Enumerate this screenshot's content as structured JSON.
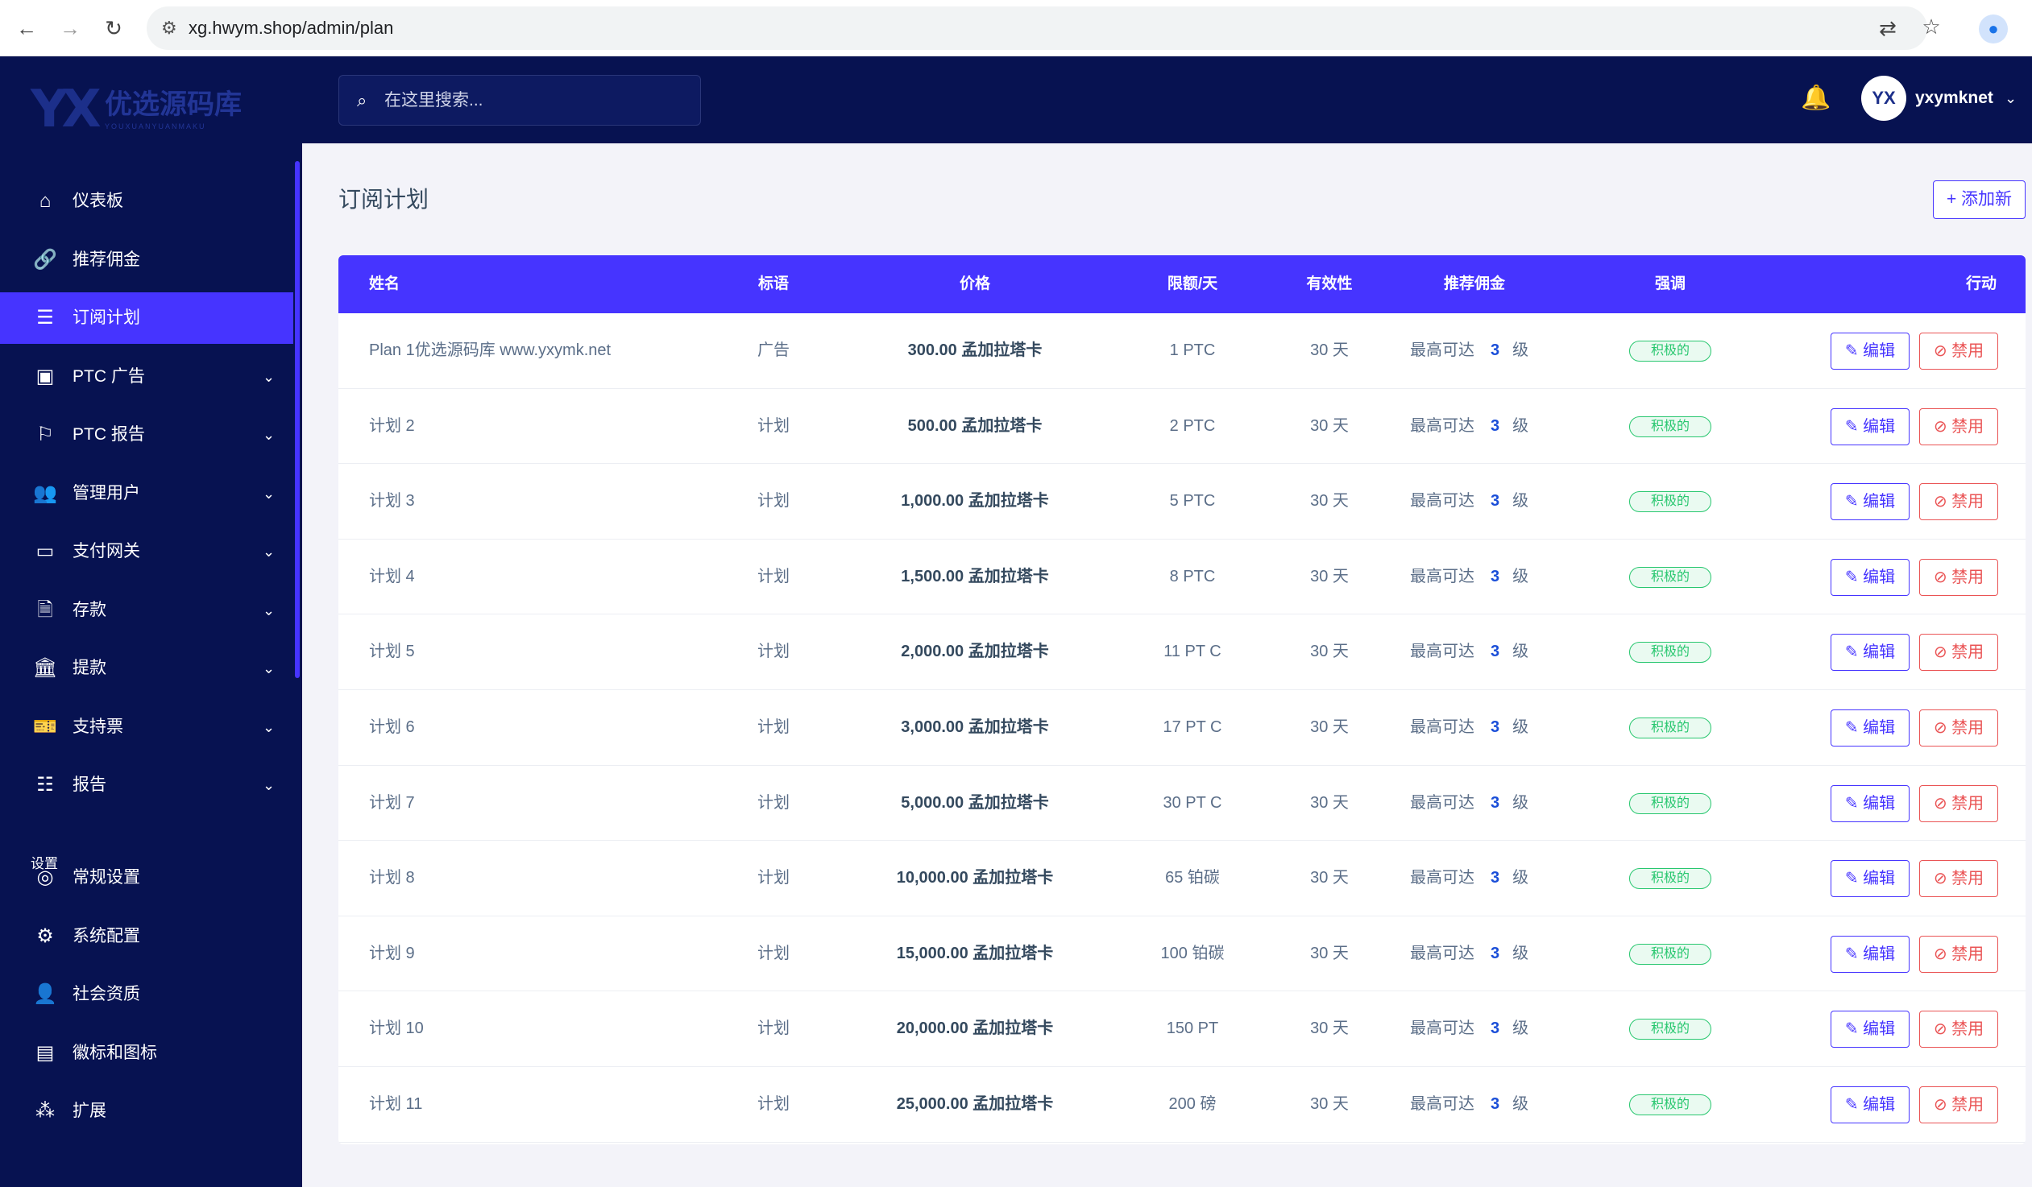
{
  "browser": {
    "url": "xg.hwym.shop/admin/plan"
  },
  "brand": {
    "mark": "YX",
    "name": "优选源码库",
    "sub": "YOUXUANYUANMAKU"
  },
  "sidebar": {
    "items": [
      {
        "label": "仪表板",
        "icon": "home-icon",
        "glyph": "⌂",
        "expandable": false,
        "active": false
      },
      {
        "label": "推荐佣金",
        "icon": "link-icon",
        "glyph": "🔗",
        "expandable": false,
        "active": false
      },
      {
        "label": "订阅计划",
        "icon": "list-icon",
        "glyph": "☰",
        "expandable": false,
        "active": true
      },
      {
        "label": "PTC 广告",
        "icon": "ad-icon",
        "glyph": "▣",
        "expandable": true,
        "active": false
      },
      {
        "label": "PTC 报告",
        "icon": "flag-icon",
        "glyph": "⚐",
        "expandable": true,
        "active": false
      },
      {
        "label": "管理用户",
        "icon": "users-icon",
        "glyph": "👥",
        "expandable": true,
        "active": false
      },
      {
        "label": "支付网关",
        "icon": "credit-card-icon",
        "glyph": "▭",
        "expandable": true,
        "active": false
      },
      {
        "label": "存款",
        "icon": "deposit-icon",
        "glyph": "🗎",
        "expandable": true,
        "active": false
      },
      {
        "label": "提款",
        "icon": "bank-icon",
        "glyph": "🏛",
        "expandable": true,
        "active": false
      },
      {
        "label": "支持票",
        "icon": "ticket-icon",
        "glyph": "🎫",
        "expandable": true,
        "active": false
      },
      {
        "label": "报告",
        "icon": "report-list-icon",
        "glyph": "☷",
        "expandable": true,
        "active": false
      }
    ],
    "section_settings": "设置",
    "settings_items": [
      {
        "label": "常规设置",
        "icon": "life-ring-icon",
        "glyph": "◎"
      },
      {
        "label": "系统配置",
        "icon": "gear-icon",
        "glyph": "⚙"
      },
      {
        "label": "社会资质",
        "icon": "user-group-icon",
        "glyph": "👤"
      },
      {
        "label": "徽标和图标",
        "icon": "image-icon",
        "glyph": "▤"
      },
      {
        "label": "扩展",
        "icon": "puzzle-icon",
        "glyph": "⁂"
      }
    ]
  },
  "topbar": {
    "search_placeholder": "在这里搜索...",
    "username": "yxymknet",
    "avatar_text": "YX"
  },
  "page": {
    "title": "订阅计划",
    "add_button": "+ 添加新"
  },
  "table": {
    "headers": {
      "name": "姓名",
      "tag": "标语",
      "price": "价格",
      "limit": "限额/天",
      "validity": "有效性",
      "referral": "推荐佣金",
      "emphasis": "强调",
      "action": "行动"
    },
    "rows": [
      {
        "name": "Plan 1优选源码库 www.yxymk.net",
        "tag": "广告",
        "price": "300.00 孟加拉塔卡",
        "limit": "1 PTC",
        "validity": "30 天",
        "ref_prefix": "最高可达",
        "ref_level": "3",
        "ref_suffix": "级",
        "status": "积极的",
        "edit": "编辑",
        "disable": "禁用"
      },
      {
        "name": "计划 2",
        "tag": "计划",
        "price": "500.00 孟加拉塔卡",
        "limit": "2 PTC",
        "validity": "30 天",
        "ref_prefix": "最高可达",
        "ref_level": "3",
        "ref_suffix": "级",
        "status": "积极的",
        "edit": "编辑",
        "disable": "禁用"
      },
      {
        "name": "计划 3",
        "tag": "计划",
        "price": "1,000.00 孟加拉塔卡",
        "limit": "5 PTC",
        "validity": "30 天",
        "ref_prefix": "最高可达",
        "ref_level": "3",
        "ref_suffix": "级",
        "status": "积极的",
        "edit": "编辑",
        "disable": "禁用"
      },
      {
        "name": "计划 4",
        "tag": "计划",
        "price": "1,500.00 孟加拉塔卡",
        "limit": "8 PTC",
        "validity": "30 天",
        "ref_prefix": "最高可达",
        "ref_level": "3",
        "ref_suffix": "级",
        "status": "积极的",
        "edit": "编辑",
        "disable": "禁用"
      },
      {
        "name": "计划 5",
        "tag": "计划",
        "price": "2,000.00 孟加拉塔卡",
        "limit": "11 PT C",
        "validity": "30 天",
        "ref_prefix": "最高可达",
        "ref_level": "3",
        "ref_suffix": "级",
        "status": "积极的",
        "edit": "编辑",
        "disable": "禁用"
      },
      {
        "name": "计划 6",
        "tag": "计划",
        "price": "3,000.00 孟加拉塔卡",
        "limit": "17 PT C",
        "validity": "30 天",
        "ref_prefix": "最高可达",
        "ref_level": "3",
        "ref_suffix": "级",
        "status": "积极的",
        "edit": "编辑",
        "disable": "禁用"
      },
      {
        "name": "计划 7",
        "tag": "计划",
        "price": "5,000.00 孟加拉塔卡",
        "limit": "30 PT C",
        "validity": "30 天",
        "ref_prefix": "最高可达",
        "ref_level": "3",
        "ref_suffix": "级",
        "status": "积极的",
        "edit": "编辑",
        "disable": "禁用"
      },
      {
        "name": "计划 8",
        "tag": "计划",
        "price": "10,000.00 孟加拉塔卡",
        "limit": "65 铂碳",
        "validity": "30 天",
        "ref_prefix": "最高可达",
        "ref_level": "3",
        "ref_suffix": "级",
        "status": "积极的",
        "edit": "编辑",
        "disable": "禁用"
      },
      {
        "name": "计划 9",
        "tag": "计划",
        "price": "15,000.00 孟加拉塔卡",
        "limit": "100 铂碳",
        "validity": "30 天",
        "ref_prefix": "最高可达",
        "ref_level": "3",
        "ref_suffix": "级",
        "status": "积极的",
        "edit": "编辑",
        "disable": "禁用"
      },
      {
        "name": "计划 10",
        "tag": "计划",
        "price": "20,000.00 孟加拉塔卡",
        "limit": "150 PT",
        "validity": "30 天",
        "ref_prefix": "最高可达",
        "ref_level": "3",
        "ref_suffix": "级",
        "status": "积极的",
        "edit": "编辑",
        "disable": "禁用"
      },
      {
        "name": "计划 11",
        "tag": "计划",
        "price": "25,000.00 孟加拉塔卡",
        "limit": "200 磅",
        "validity": "30 天",
        "ref_prefix": "最高可达",
        "ref_level": "3",
        "ref_suffix": "级",
        "status": "积极的",
        "edit": "编辑",
        "disable": "禁用"
      }
    ]
  },
  "colors": {
    "sidebar_bg": "#071251",
    "accent": "#4634ff",
    "success": "#28c76f",
    "danger": "#ea5455"
  }
}
